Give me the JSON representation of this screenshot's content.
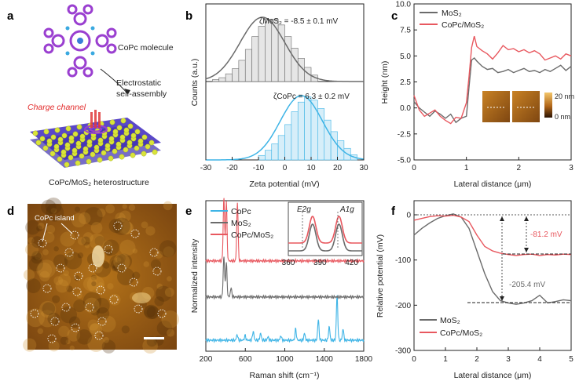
{
  "panels": {
    "a": {
      "letter": "a",
      "molecule_label": "CoPc molecule",
      "assembly_label_1": "Electrostatic",
      "assembly_label_2": "self-assembly",
      "charge_channel": "Charge channel",
      "heterostructure_label": "CoPc/MoS₂ heterostructure"
    },
    "d": {
      "letter": "d",
      "island_label": "CoPc island"
    }
  },
  "colors": {
    "gray_series": "#6b6b6b",
    "red_series": "#e8585f",
    "blue_series": "#3eb4e6",
    "purple": "#9a3fd0",
    "afm_dark": "#3a1f05",
    "afm_mid": "#9a5a12",
    "afm_light": "#e9b04a"
  },
  "chart_data": [
    {
      "id": "b",
      "letter": "b",
      "type": "bar",
      "xlabel": "Zeta potential (mV)",
      "ylabel": "Counts (a.u.)",
      "xlim": [
        -30,
        30
      ],
      "xticks": [
        "-30",
        "-20",
        "-10",
        "0",
        "10",
        "20",
        "30"
      ],
      "series": [
        {
          "name": "MoS2",
          "annotation": "ζMoS₂ = -8.5 ± 0.1 mV",
          "mean": -8.5,
          "sd": 8.5,
          "bins": [
            -27.5,
            -25,
            -22.5,
            -20,
            -17.5,
            -15,
            -12.5,
            -10,
            -7.5,
            -5,
            -2.5,
            0,
            2.5,
            5,
            7.5,
            10
          ],
          "values": [
            0.03,
            0.06,
            0.12,
            0.2,
            0.33,
            0.5,
            0.7,
            0.86,
            0.97,
            0.97,
            0.88,
            0.7,
            0.52,
            0.36,
            0.22,
            0.1
          ]
        },
        {
          "name": "CoPc",
          "annotation": "ζCoPc = 6.3 ± 0.2 mV",
          "mean": 6.3,
          "sd": 8.0,
          "bins": [
            -10,
            -7.5,
            -5,
            -2.5,
            0,
            2.5,
            5,
            7.5,
            10,
            12.5,
            15,
            17.5,
            20,
            22.5,
            25
          ],
          "values": [
            0.07,
            0.15,
            0.25,
            0.38,
            0.55,
            0.75,
            0.9,
            0.98,
            0.93,
            0.8,
            0.62,
            0.44,
            0.3,
            0.18,
            0.08
          ]
        }
      ]
    },
    {
      "id": "c",
      "letter": "c",
      "type": "line",
      "xlabel": "Lateral distance (μm)",
      "ylabel": "Height (nm)",
      "xlim": [
        0,
        3
      ],
      "ylim": [
        -5,
        10
      ],
      "xticks": [
        "0",
        "1",
        "2",
        "3"
      ],
      "yticks": [
        "-5.0",
        "-2.5",
        "0.0",
        "2.5",
        "5.0",
        "7.5",
        "10.0"
      ],
      "inset_scale": [
        "20 nm",
        "0 nm"
      ],
      "series": [
        {
          "name": "MoS₂",
          "x": [
            0,
            0.1,
            0.2,
            0.3,
            0.4,
            0.5,
            0.6,
            0.7,
            0.8,
            0.9,
            1.0,
            1.05,
            1.1,
            1.15,
            1.2,
            1.3,
            1.4,
            1.5,
            1.6,
            1.7,
            1.8,
            1.9,
            2.0,
            2.1,
            2.2,
            2.3,
            2.4,
            2.5,
            2.6,
            2.7,
            2.8,
            2.9,
            3.0
          ],
          "y": [
            0.6,
            0.0,
            -0.4,
            -0.8,
            -0.3,
            -0.6,
            -1.0,
            -0.6,
            -1.4,
            -1.0,
            -0.8,
            2.0,
            4.6,
            4.8,
            4.5,
            4.0,
            3.7,
            3.8,
            3.4,
            3.5,
            3.7,
            3.4,
            3.6,
            3.8,
            3.5,
            3.6,
            3.4,
            3.7,
            3.5,
            3.8,
            4.1,
            3.6,
            4.0
          ]
        },
        {
          "name": "CoPc/MoS₂",
          "x": [
            0,
            0.1,
            0.2,
            0.3,
            0.4,
            0.5,
            0.6,
            0.7,
            0.8,
            0.9,
            1.0,
            1.05,
            1.1,
            1.15,
            1.2,
            1.3,
            1.4,
            1.5,
            1.6,
            1.7,
            1.8,
            1.9,
            2.0,
            2.1,
            2.2,
            2.3,
            2.4,
            2.5,
            2.6,
            2.7,
            2.8,
            2.9,
            3.0
          ],
          "y": [
            1.2,
            -0.2,
            -0.8,
            -0.5,
            -0.2,
            -0.8,
            -1.2,
            -1.5,
            -0.9,
            -1.0,
            0.5,
            3.0,
            5.8,
            6.9,
            5.9,
            5.5,
            5.2,
            4.7,
            5.3,
            6.0,
            5.6,
            5.7,
            5.4,
            5.6,
            5.3,
            5.5,
            5.2,
            4.6,
            4.8,
            5.0,
            4.7,
            5.2,
            5.0
          ]
        }
      ]
    },
    {
      "id": "e",
      "letter": "e",
      "type": "line",
      "xlabel": "Raman shift (cm⁻¹)",
      "ylabel": "Normalized intensity",
      "xlim": [
        200,
        1800
      ],
      "xticks": [
        "200",
        "600",
        "1000",
        "1400",
        "1800"
      ],
      "inset": {
        "xlim": [
          360,
          430
        ],
        "xticks": [
          "360",
          "390",
          "420"
        ],
        "peak_labels": [
          "E2g",
          "A1g"
        ]
      },
      "series": [
        {
          "name": "CoPc",
          "offset": 0.0,
          "peaks": [
            [
              517,
              0.25
            ],
            [
              598,
              0.2
            ],
            [
              680,
              0.4
            ],
            [
              755,
              0.3
            ],
            [
              830,
              0.15
            ],
            [
              960,
              0.2
            ],
            [
              1110,
              0.5
            ],
            [
              1200,
              0.3
            ],
            [
              1340,
              0.9
            ],
            [
              1450,
              0.6
            ],
            [
              1530,
              2.0
            ],
            [
              1590,
              0.5
            ]
          ]
        },
        {
          "name": "MoS₂",
          "offset": 1.2,
          "peaks": [
            [
              383,
              1.8
            ],
            [
              408,
              1.5
            ],
            [
              455,
              0.4
            ]
          ]
        },
        {
          "name": "CoPc/MoS₂",
          "offset": 2.2,
          "peaks": [
            [
              383,
              2.8
            ],
            [
              408,
              2.6
            ],
            [
              520,
              2.6
            ]
          ]
        }
      ]
    },
    {
      "id": "f",
      "letter": "f",
      "type": "line",
      "xlabel": "Lateral distance (μm)",
      "ylabel": "Relative potential (mV)",
      "xlim": [
        0,
        5
      ],
      "ylim": [
        -300,
        0
      ],
      "xticks": [
        "0",
        "1",
        "2",
        "3",
        "4",
        "5"
      ],
      "yticks": [
        "0",
        "-100",
        "-200",
        "-300"
      ],
      "annotations": [
        "-81.2 mV",
        "-205.4 mV"
      ],
      "series": [
        {
          "name": "MoS₂",
          "x": [
            0,
            0.25,
            0.5,
            0.75,
            1.0,
            1.25,
            1.5,
            1.75,
            2.0,
            2.25,
            2.5,
            2.75,
            3.0,
            3.25,
            3.5,
            3.75,
            4.0,
            4.25,
            4.5,
            4.75,
            5.0
          ],
          "y": [
            -45,
            -30,
            -18,
            -8,
            -2,
            2,
            -5,
            -30,
            -80,
            -130,
            -170,
            -190,
            -195,
            -198,
            -195,
            -190,
            -178,
            -195,
            -192,
            -188,
            -190
          ]
        },
        {
          "name": "CoPc/MoS₂",
          "x": [
            0,
            0.25,
            0.5,
            0.75,
            1.0,
            1.25,
            1.5,
            1.75,
            2.0,
            2.25,
            2.5,
            2.75,
            3.0,
            3.25,
            3.5,
            3.75,
            4.0,
            4.25,
            4.5,
            4.75,
            5.0
          ],
          "y": [
            -12,
            -8,
            -4,
            -2,
            -3,
            -1,
            -5,
            -15,
            -45,
            -70,
            -80,
            -85,
            -88,
            -90,
            -88,
            -87,
            -90,
            -88,
            -89,
            -87,
            -88
          ]
        }
      ]
    }
  ]
}
